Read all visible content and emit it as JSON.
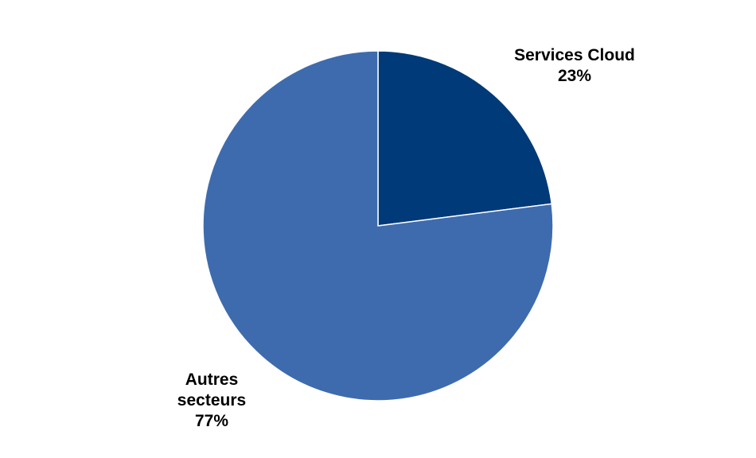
{
  "chart_data": {
    "type": "pie",
    "title": "",
    "slices": [
      {
        "label_lines": [
          "Services Cloud"
        ],
        "percent_label": "23%",
        "value": 23,
        "color": "#003A78"
      },
      {
        "label_lines": [
          "Autres",
          "secteurs"
        ],
        "percent_label": "77%",
        "value": 77,
        "color": "#3E6BAE"
      }
    ],
    "start_angle_deg": 0,
    "direction": "clockwise",
    "slice_edge_color": "#FFFFFF",
    "legend": "none",
    "data_labels": "outside, category name and percentage"
  }
}
